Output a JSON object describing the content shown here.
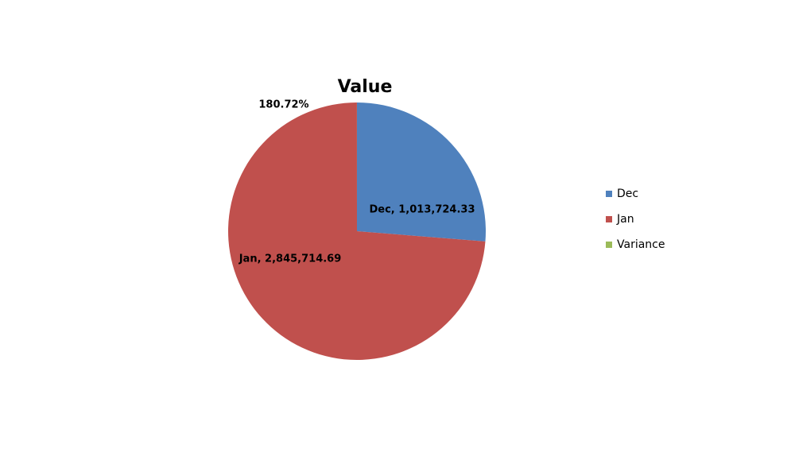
{
  "chart_data": {
    "type": "pie",
    "title": "Value",
    "categories": [
      "Dec",
      "Jan",
      "Variance"
    ],
    "values": [
      1013724.33,
      2845714.69,
      180.72
    ],
    "value_labels": [
      "Dec, 1,013,724.33",
      "Jan, 2,845,714.69",
      "180.72%"
    ],
    "colors": [
      "#4f81bd",
      "#c0504d",
      "#9bbb59"
    ],
    "legend": "right"
  }
}
